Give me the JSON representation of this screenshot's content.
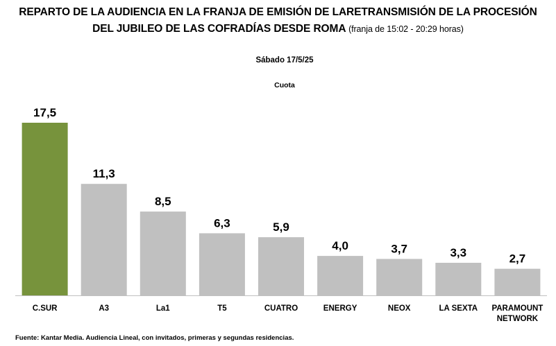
{
  "header": {
    "title_line1": "REPARTO DE LA AUDIENCIA EN LA FRANJA DE EMISIÓN DE LARETRANSMISIÓN DE LA PROCESIÓN",
    "title_line2": "DEL JUBILEO DE LAS COFRADÍAS DESDE ROMA",
    "title_note": "(franja de 15:02 - 20:29 horas)"
  },
  "chart_data": {
    "type": "bar",
    "title": "REPARTO DE LA AUDIENCIA EN LA FRANJA DE EMISIÓN DE LARETRANSMISIÓN DE LA PROCESIÓN DEL JUBILEO DE LAS COFRADÍAS DESDE ROMA",
    "subtitle": "Sábado 17/5/25",
    "series_label": "Cuota",
    "categories": [
      [
        "C.SUR"
      ],
      [
        "A3"
      ],
      [
        "La1"
      ],
      [
        "T5"
      ],
      [
        "CUATRO"
      ],
      [
        "ENERGY"
      ],
      [
        "NEOX"
      ],
      [
        "LA SEXTA"
      ],
      [
        "PARAMOUNT",
        "NETWORK"
      ]
    ],
    "values": [
      17.5,
      11.3,
      8.5,
      6.3,
      5.9,
      4.0,
      3.7,
      3.3,
      2.7
    ],
    "value_labels": [
      "17,5",
      "11,3",
      "8,5",
      "6,3",
      "5,9",
      "4,0",
      "3,7",
      "3,3",
      "2,7"
    ],
    "highlight_index": 0,
    "colors": {
      "highlight": "#77933c",
      "default": "#c0c0c0",
      "axis": "#bfbfbf"
    },
    "xlabel": "",
    "ylabel": "",
    "ylim": [
      0,
      17.5
    ],
    "grid": false,
    "legend": "none"
  },
  "footer": {
    "source": "Fuente: Kantar Media. Audiencia Lineal, con invitados, primeras y segundas residencias."
  }
}
